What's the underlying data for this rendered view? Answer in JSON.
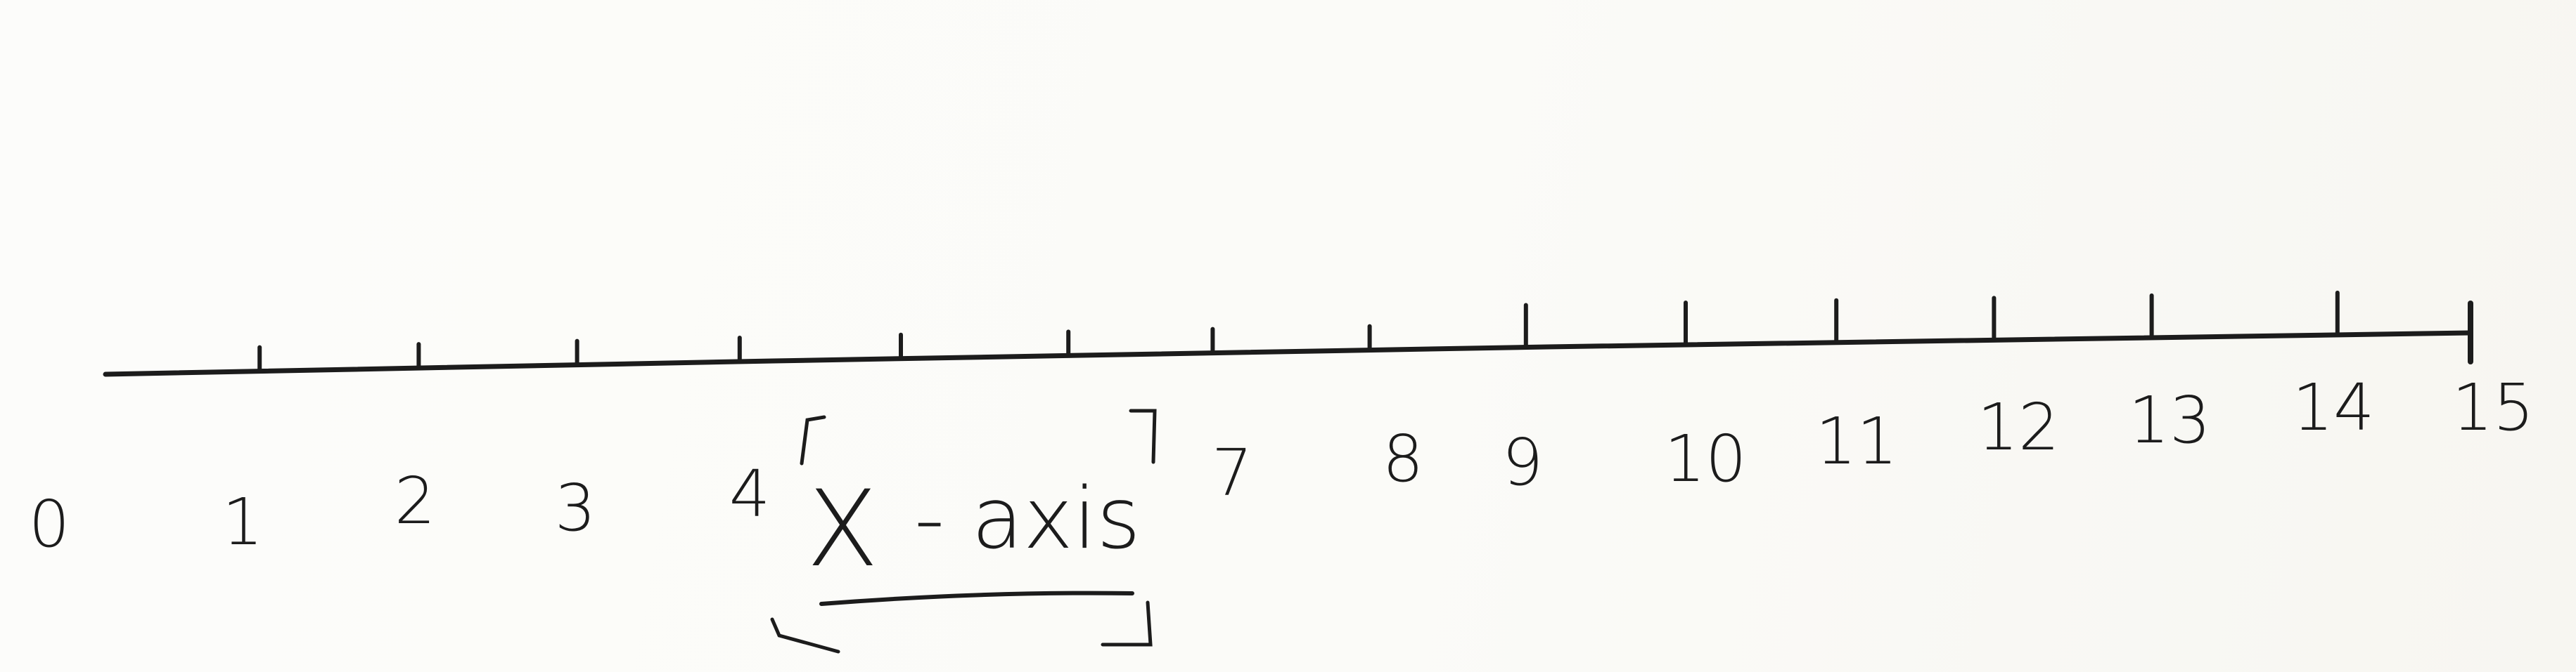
{
  "number_line": {
    "min": 0,
    "max": 15,
    "tick_labels": [
      "0",
      "1",
      "2",
      "3",
      "4",
      "7",
      "8",
      "9",
      "10",
      "11",
      "12",
      "13",
      "14",
      "15"
    ],
    "tick_values": [
      1,
      2,
      3,
      4,
      5,
      6,
      7,
      8,
      9,
      10,
      11,
      12,
      13,
      14,
      15
    ]
  },
  "annotation": {
    "x_letter": "X",
    "axis_word": "- axis"
  },
  "colors": {
    "ink": "#1c1c1c",
    "paper": "#fdfdfb"
  }
}
